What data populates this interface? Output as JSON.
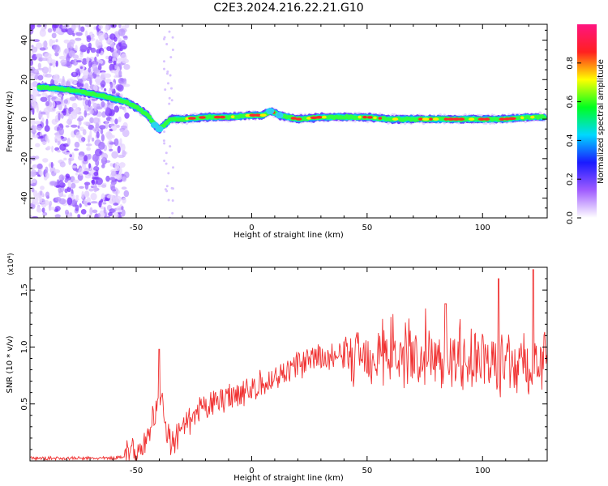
{
  "title": "C2E3.2024.216.22.21.G10",
  "chart_data": [
    {
      "type": "heatmap",
      "xlabel": "Height of straight line (km)",
      "ylabel": "Frequency (Hz)",
      "xlim": [
        -96,
        128
      ],
      "ylim": [
        -50,
        48
      ],
      "xticks": [
        -50,
        0,
        50,
        100
      ],
      "yticks": [
        -40,
        -20,
        0,
        20,
        40
      ],
      "colorbar": {
        "label": "Normalized spectral amplitude",
        "range": [
          0,
          1
        ],
        "ticks": [
          "0.0",
          "0.2",
          "0.4",
          "0.6",
          "0.8"
        ],
        "colors": [
          "#ffffff",
          "#a05cff",
          "#1a1aff",
          "#00d8ff",
          "#00ff20",
          "#ffff00",
          "#ff2020",
          "#ff1480"
        ]
      },
      "ridge_line": {
        "x": [
          -90,
          -80,
          -70,
          -62,
          -55,
          -50,
          -45,
          -42,
          -40,
          -37,
          -35,
          -30,
          -20,
          -10,
          0,
          5,
          8,
          12,
          20,
          30,
          40,
          50,
          60,
          70,
          80,
          90,
          100,
          110,
          120,
          128
        ],
        "y": [
          16,
          15,
          13,
          11,
          9,
          6,
          2,
          -3,
          -5,
          -2,
          0,
          0,
          1,
          1,
          2,
          2,
          4,
          2,
          0,
          1,
          1,
          1,
          0,
          0,
          0,
          0,
          0,
          0,
          1,
          1
        ]
      },
      "noise_region": {
        "x": [
          -96,
          -54
        ],
        "level": "low amplitude purple scatter"
      }
    },
    {
      "type": "line",
      "xlabel": "Height of straight line (km)",
      "ylabel": "SNR (10 * v/v)",
      "scale_label": "(x10⁴)",
      "xlim": [
        -96,
        128
      ],
      "ylim": [
        0,
        1.7
      ],
      "xticks": [
        -50,
        0,
        50,
        100
      ],
      "yticks": [
        "0.5",
        "1.0",
        "1.5"
      ],
      "color": "#f03030",
      "envelope": {
        "x": [
          -96,
          -60,
          -50,
          -45,
          -41,
          -39,
          -37,
          -35,
          -30,
          -25,
          -20,
          -15,
          -10,
          -5,
          0,
          5,
          10,
          15,
          20,
          30,
          40,
          50,
          60,
          70,
          80,
          90,
          100,
          110,
          120,
          128
        ],
        "y": [
          0.02,
          0.02,
          0.06,
          0.18,
          0.45,
          0.55,
          0.3,
          0.1,
          0.25,
          0.35,
          0.45,
          0.5,
          0.55,
          0.58,
          0.6,
          0.65,
          0.7,
          0.78,
          0.82,
          0.88,
          0.9,
          0.9,
          0.88,
          0.86,
          0.86,
          0.84,
          0.82,
          0.8,
          0.78,
          0.78
        ]
      },
      "peaks": [
        {
          "x": -40,
          "y": 0.98
        },
        {
          "x": 107,
          "y": 1.6
        },
        {
          "x": 122,
          "y": 1.68
        },
        {
          "x": 84,
          "y": 1.38
        }
      ]
    }
  ]
}
